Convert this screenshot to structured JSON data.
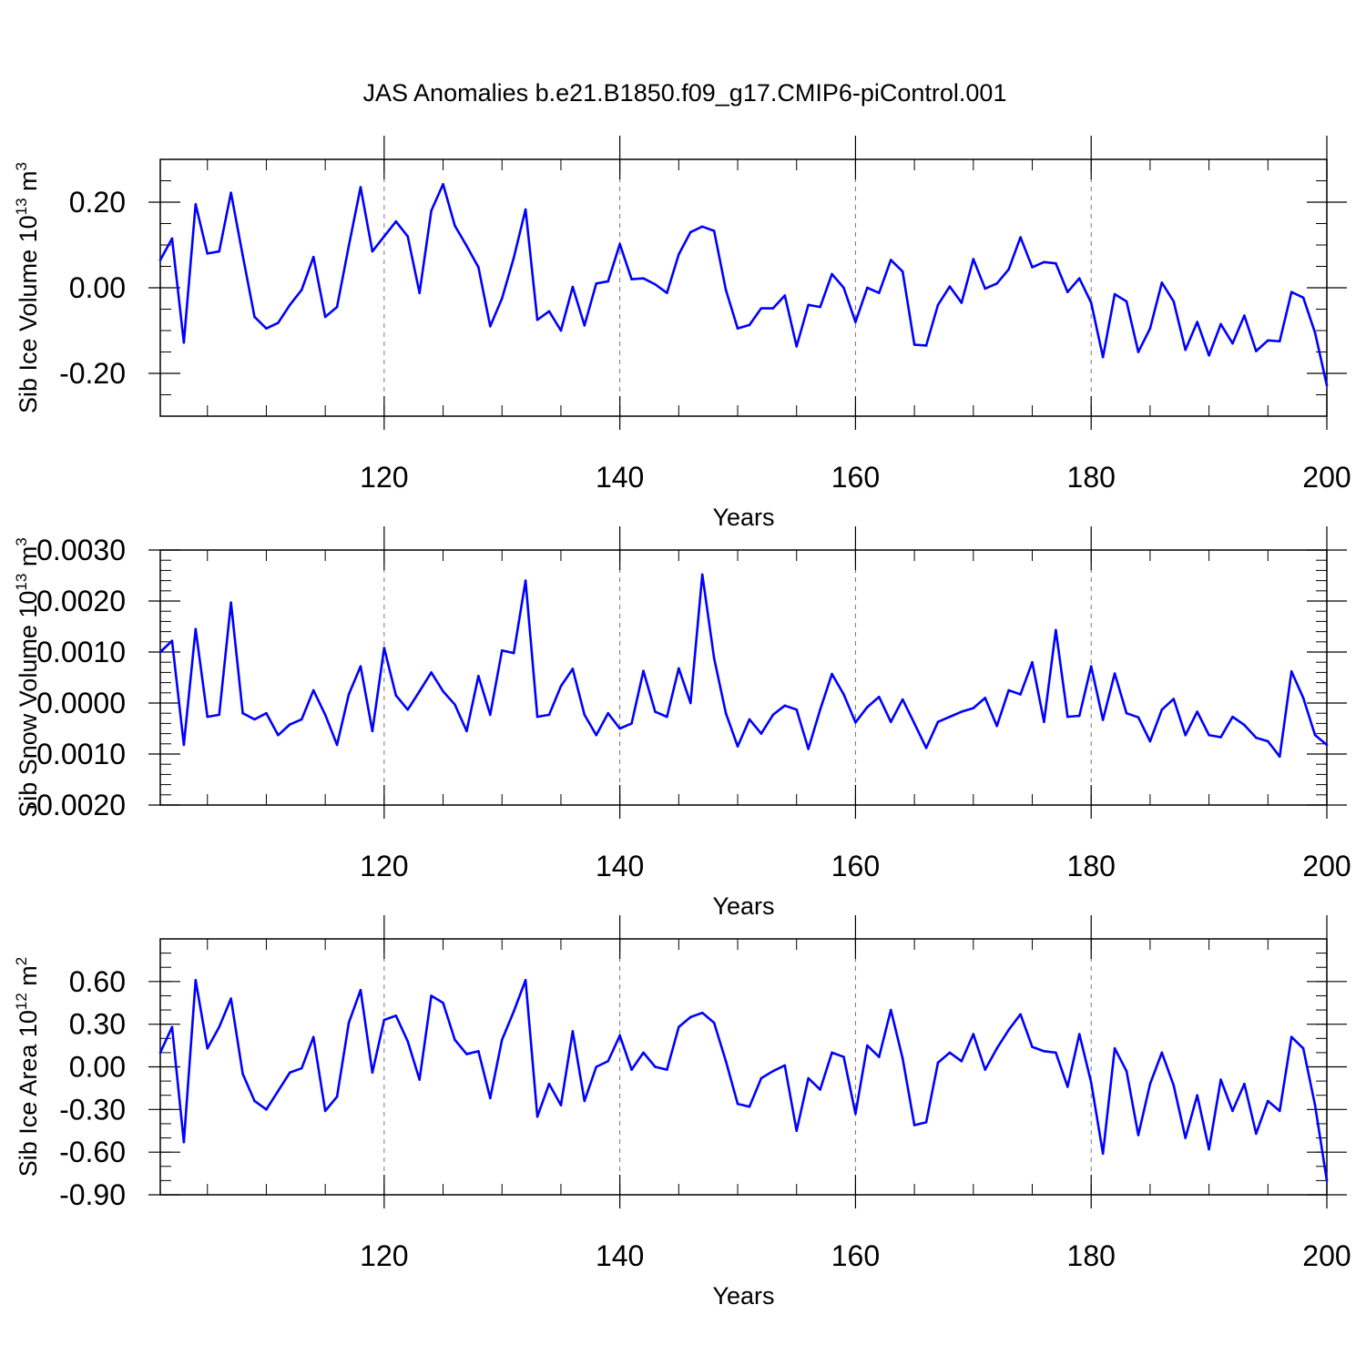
{
  "title": "JAS Anomalies b.e21.B1850.f09_g17.CMIP6-piControl.001",
  "chart_data": [
    {
      "type": "line",
      "ylabel": "Sib Ice Volume 10",
      "ylabel_exp": "13",
      "ylabel_unit": " m",
      "ylabel_unit_exp": "3",
      "xlabel": "Years",
      "xlim": [
        101,
        200
      ],
      "ylim": [
        -0.3,
        0.3
      ],
      "yticks": [
        -0.2,
        0.0,
        0.2
      ],
      "ytick_labels": [
        "-0.20",
        "0.00",
        "0.20"
      ],
      "yminor_step": 0.05,
      "xticks": [
        120,
        140,
        160,
        180,
        200
      ],
      "xtick_labels": [
        "120",
        "140",
        "160",
        "180",
        "200"
      ],
      "x_start": 101,
      "series": [
        {
          "name": "Sib Ice Volume",
          "color": "#0000ff",
          "values": [
            0.065,
            0.115,
            -0.128,
            0.195,
            0.08,
            0.085,
            0.222,
            0.075,
            -0.068,
            -0.095,
            -0.082,
            -0.04,
            -0.005,
            0.072,
            -0.068,
            -0.045,
            0.098,
            0.235,
            0.085,
            0.12,
            0.155,
            0.12,
            -0.012,
            0.18,
            0.242,
            0.145,
            0.098,
            0.048,
            -0.09,
            -0.025,
            0.07,
            0.183,
            -0.075,
            -0.055,
            -0.1,
            0.002,
            -0.088,
            0.01,
            0.015,
            0.102,
            0.02,
            0.022,
            0.008,
            -0.012,
            0.078,
            0.13,
            0.143,
            0.133,
            -0.005,
            -0.095,
            -0.087,
            -0.048,
            -0.048,
            -0.018,
            -0.137,
            -0.04,
            -0.045,
            0.032,
            0.0,
            -0.08,
            0.0,
            -0.012,
            0.065,
            0.038,
            -0.133,
            -0.135,
            -0.04,
            0.003,
            -0.035,
            0.067,
            -0.002,
            0.01,
            0.043,
            0.118,
            0.048,
            0.06,
            0.057,
            -0.01,
            0.022,
            -0.035,
            -0.162,
            -0.015,
            -0.032,
            -0.15,
            -0.095,
            0.012,
            -0.032,
            -0.145,
            -0.08,
            -0.158,
            -0.085,
            -0.13,
            -0.065,
            -0.148,
            -0.123,
            -0.125,
            -0.01,
            -0.023,
            -0.105,
            -0.228
          ]
        }
      ]
    },
    {
      "type": "line",
      "ylabel": "Sib Snow Volume 10",
      "ylabel_exp": "13",
      "ylabel_unit": " m",
      "ylabel_unit_exp": "3",
      "xlabel": "Years",
      "xlim": [
        101,
        200
      ],
      "ylim": [
        -0.002,
        0.003
      ],
      "yticks": [
        -0.002,
        -0.001,
        0.0,
        0.001,
        0.002,
        0.003
      ],
      "ytick_labels": [
        "-0.0020",
        "-0.0010",
        "0.0000",
        "0.0010",
        "0.0020",
        "0.0030"
      ],
      "yminor_step": 0.0002,
      "xticks": [
        120,
        140,
        160,
        180,
        200
      ],
      "xtick_labels": [
        "120",
        "140",
        "160",
        "180",
        "200"
      ],
      "x_start": 101,
      "series": [
        {
          "name": "Sib Snow Volume",
          "color": "#0000ff",
          "values": [
            0.001,
            0.00122,
            -0.00082,
            0.00145,
            -0.00027,
            -0.00023,
            0.00197,
            -0.0002,
            -0.00032,
            -0.0002,
            -0.00063,
            -0.00042,
            -0.00032,
            0.00025,
            -0.00023,
            -0.00082,
            0.00017,
            0.00072,
            -0.00055,
            0.00108,
            0.00015,
            -0.00013,
            0.00023,
            0.0006,
            0.00023,
            -3e-05,
            -0.00055,
            0.00053,
            -0.00023,
            0.00103,
            0.00098,
            0.0024,
            -0.00027,
            -0.00023,
            0.00033,
            0.00067,
            -0.00023,
            -0.00063,
            -0.0002,
            -0.0005,
            -0.0004,
            0.00063,
            -0.00017,
            -0.00027,
            0.00068,
            0.0,
            0.00252,
            0.00088,
            -0.0002,
            -0.00085,
            -0.00032,
            -0.0006,
            -0.00023,
            -5e-05,
            -0.00013,
            -0.0009,
            -0.00013,
            0.00057,
            0.00017,
            -0.00038,
            -8e-05,
            0.00012,
            -0.00037,
            7e-05,
            -0.0004,
            -0.00088,
            -0.00037,
            -0.00027,
            -0.00017,
            -0.0001,
            0.0001,
            -0.00045,
            0.00025,
            0.00017,
            0.0008,
            -0.00037,
            0.00143,
            -0.00027,
            -0.00025,
            0.00072,
            -0.00033,
            0.00058,
            -0.0002,
            -0.00028,
            -0.00075,
            -0.00013,
            8e-05,
            -0.00063,
            -0.00017,
            -0.00063,
            -0.00067,
            -0.00027,
            -0.00043,
            -0.00068,
            -0.00075,
            -0.00105,
            0.00062,
            0.0001,
            -0.00063,
            -0.00082
          ]
        }
      ]
    },
    {
      "type": "line",
      "ylabel": "Sib Ice Area 10",
      "ylabel_exp": "12",
      "ylabel_unit": " m",
      "ylabel_unit_exp": "2",
      "xlabel": "Years",
      "xlim": [
        101,
        200
      ],
      "ylim": [
        -0.9,
        0.9
      ],
      "yticks": [
        -0.9,
        -0.6,
        -0.3,
        0.0,
        0.3,
        0.6
      ],
      "ytick_labels": [
        "-0.90",
        "-0.60",
        "-0.30",
        "0.00",
        "0.30",
        "0.60"
      ],
      "yminor_step": 0.1,
      "xticks": [
        120,
        140,
        160,
        180,
        200
      ],
      "xtick_labels": [
        "120",
        "140",
        "160",
        "180",
        "200"
      ],
      "x_start": 101,
      "series": [
        {
          "name": "Sib Ice Area",
          "color": "#0000ff",
          "values": [
            0.1,
            0.28,
            -0.53,
            0.61,
            0.13,
            0.28,
            0.48,
            -0.05,
            -0.24,
            -0.3,
            -0.17,
            -0.04,
            -0.01,
            0.21,
            -0.31,
            -0.21,
            0.31,
            0.54,
            -0.04,
            0.33,
            0.36,
            0.18,
            -0.09,
            0.5,
            0.45,
            0.19,
            0.09,
            0.11,
            -0.22,
            0.19,
            0.39,
            0.61,
            -0.35,
            -0.12,
            -0.27,
            0.25,
            -0.24,
            0.0,
            0.04,
            0.22,
            -0.02,
            0.1,
            0.0,
            -0.02,
            0.28,
            0.35,
            0.38,
            0.31,
            0.04,
            -0.26,
            -0.28,
            -0.08,
            -0.03,
            0.01,
            -0.45,
            -0.08,
            -0.16,
            0.1,
            0.07,
            -0.33,
            0.15,
            0.07,
            0.4,
            0.06,
            -0.41,
            -0.39,
            0.03,
            0.1,
            0.04,
            0.23,
            -0.02,
            0.13,
            0.26,
            0.37,
            0.14,
            0.11,
            0.1,
            -0.14,
            0.23,
            -0.11,
            -0.61,
            0.13,
            -0.03,
            -0.48,
            -0.12,
            0.1,
            -0.13,
            -0.5,
            -0.2,
            -0.58,
            -0.09,
            -0.31,
            -0.12,
            -0.47,
            -0.24,
            -0.31,
            0.21,
            0.13,
            -0.27,
            -0.8
          ]
        }
      ]
    }
  ]
}
